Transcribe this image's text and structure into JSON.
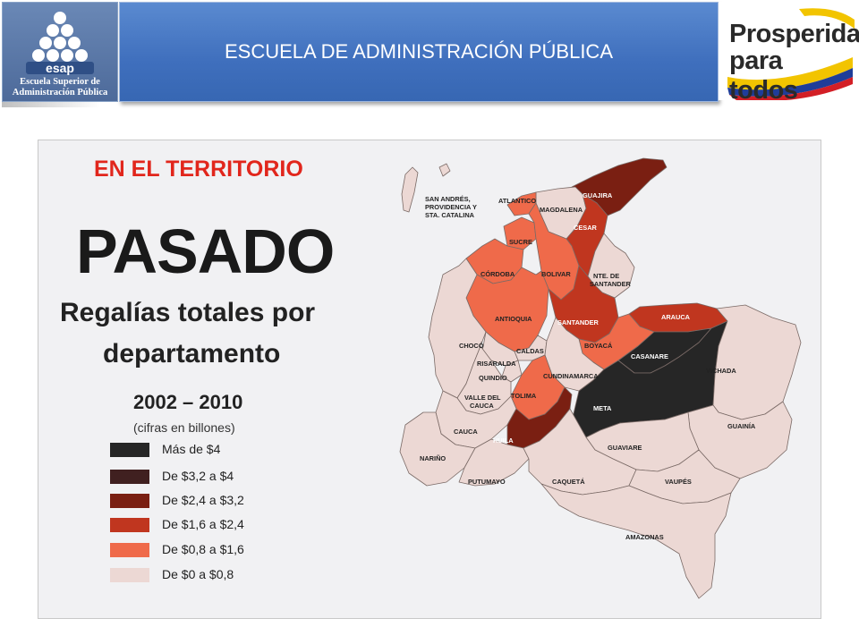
{
  "header": {
    "logo": {
      "wordmark": "esap",
      "subtitle_1": "Escuela Superior de",
      "subtitle_2": "Administración Pública"
    },
    "title": "ESCUELA DE ADMINISTRACIÓN PÚBLICA",
    "brand": {
      "line1": "Prosperidad",
      "line2": "para todos"
    }
  },
  "slide": {
    "heading": "EN EL TERRITORIO",
    "big_title": "PASADO",
    "subtitle_line1": "Regalías totales por",
    "subtitle_line2": "departamento",
    "years": "2002 – 2010",
    "years_note": "(cifras en billones)"
  },
  "legend": [
    {
      "label": "Más de $4",
      "color": "#262626"
    },
    {
      "label": "De $3,2 a $4",
      "color": "#402020"
    },
    {
      "label": "De $2,4 a $3,2",
      "color": "#7a1f12"
    },
    {
      "label": "De $1,6 a $2,4",
      "color": "#c0361f"
    },
    {
      "label": "De $0,8 a $1,6",
      "color": "#ef6a4a"
    },
    {
      "label": "De $0 a $0,8",
      "color": "#ecd8d4"
    }
  ],
  "map": {
    "departments": {
      "san_andres": "SAN ANDRÉS, PROVIDENCIA Y STA. CATALINA",
      "guajira": "GUAJIRA",
      "atlantico": "ATLANTICO",
      "magdalena": "MAGDALENA",
      "cesar": "CESAR",
      "sucre": "SUCRE",
      "cordoba": "CÓRDOBA",
      "bolivar": "BOLIVAR",
      "nte_santander": "NTE. DE SANTANDER",
      "antioquia": "ANTIOQUIA",
      "santander": "SANTANDER",
      "arauca": "ARAUCA",
      "choco": "CHOCÓ",
      "caldas": "CALDAS",
      "boyaca": "BOYACÁ",
      "casanare": "CASANARE",
      "risaralda": "RISARALDA",
      "quindio": "QUINDIO",
      "cundinamarca": "CUNDINAMARCA",
      "vichada": "VICHADA",
      "valle": "VALLE DEL CAUCA",
      "tolima": "TOLIMA",
      "meta": "META",
      "guainia": "GUAINÍA",
      "cauca": "CAUCA",
      "huila": "HUILA",
      "guaviare": "GUAVIARE",
      "narino": "NARIÑO",
      "putumayo": "PUTUMAYO",
      "caqueta": "CAQUETÁ",
      "vaupes": "VAUPÉS",
      "amazonas": "AMAZONAS"
    }
  }
}
